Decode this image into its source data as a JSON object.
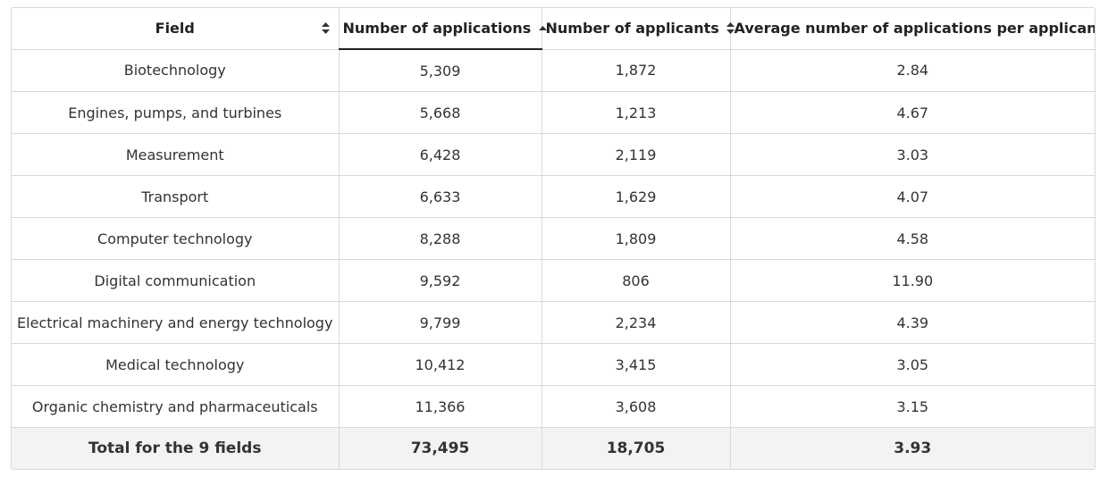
{
  "table": {
    "headers": [
      {
        "label": "Field",
        "sort": "none"
      },
      {
        "label": "Number of applications",
        "sort": "asc"
      },
      {
        "label": "Number of applicants",
        "sort": "none"
      },
      {
        "label": "Average number of applications per applicant",
        "sort": "none"
      }
    ],
    "rows": [
      [
        "Biotechnology",
        "5,309",
        "1,872",
        "2.84"
      ],
      [
        "Engines, pumps, and turbines",
        "5,668",
        "1,213",
        "4.67"
      ],
      [
        "Measurement",
        "6,428",
        "2,119",
        "3.03"
      ],
      [
        "Transport",
        "6,633",
        "1,629",
        "4.07"
      ],
      [
        "Computer technology",
        "8,288",
        "1,809",
        "4.58"
      ],
      [
        "Digital communication",
        "9,592",
        "806",
        "11.90"
      ],
      [
        "Electrical machinery and energy technology",
        "9,799",
        "2,234",
        "4.39"
      ],
      [
        "Medical technology",
        "10,412",
        "3,415",
        "3.05"
      ],
      [
        "Organic chemistry and pharmaceuticals",
        "11,366",
        "3,608",
        "3.15"
      ]
    ],
    "total": [
      "Total for the 9 fields",
      "73,495",
      "18,705",
      "3.93"
    ]
  },
  "icons": {
    "sort_none": "sort-both-icon",
    "sort_asc": "sort-ascending-icon"
  },
  "colors": {
    "border": "#d9d9d9",
    "total_row_bg": "#f3f3f3",
    "active_underline": "#222222"
  }
}
